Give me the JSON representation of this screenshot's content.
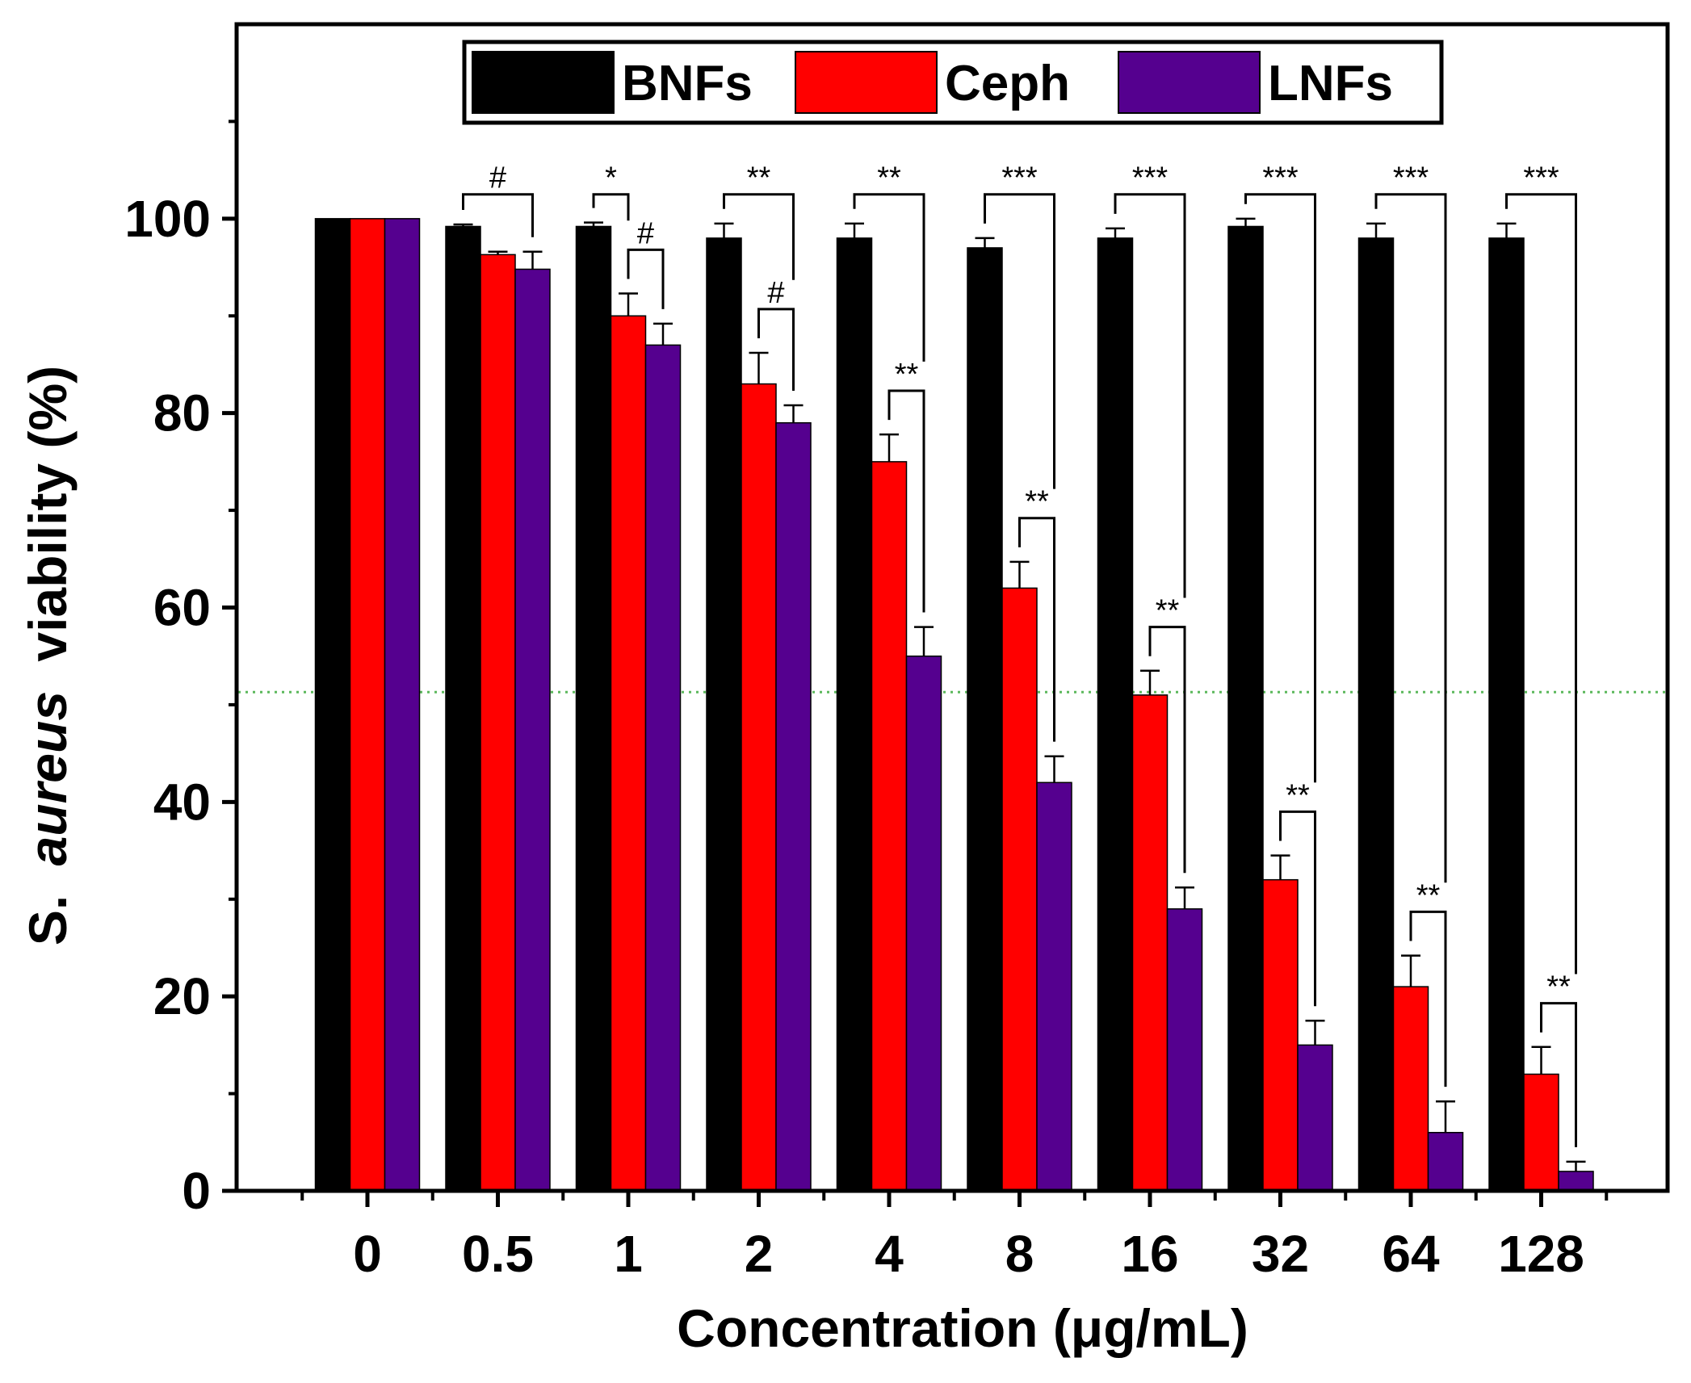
{
  "chart_data": {
    "type": "bar",
    "title": "",
    "xlabel": "Concentration (μg/mL)",
    "ylabel": {
      "prefix": "S.",
      "italic": "aureus",
      "suffix": "viability (%)"
    },
    "ylim": [
      0,
      120
    ],
    "yticks": [
      0,
      20,
      40,
      60,
      80,
      100
    ],
    "grid": false,
    "legend_position": "top-center",
    "reference_line": {
      "y": 51.3,
      "color": "#5cb85c",
      "style": "dotted"
    },
    "categories": [
      "0",
      "0.5",
      "1",
      "2",
      "4",
      "8",
      "16",
      "32",
      "64",
      "128"
    ],
    "series": [
      {
        "name": "BNFs",
        "color": "#000000",
        "values": [
          100,
          99.2,
          99.2,
          98,
          98,
          97,
          98,
          99.2,
          98,
          98
        ],
        "errors": [
          0,
          0.2,
          0.4,
          1.5,
          1.5,
          1,
          1,
          0.8,
          1.5,
          1.5
        ]
      },
      {
        "name": "Ceph",
        "color": "#ff0000",
        "values": [
          100,
          96.3,
          90,
          83,
          75,
          62,
          51,
          32,
          21,
          12
        ],
        "errors": [
          0,
          0.3,
          2.3,
          3.2,
          2.8,
          2.7,
          2.5,
          2.5,
          3.2,
          2.8
        ]
      },
      {
        "name": "LNFs",
        "color": "#55008f",
        "values": [
          100,
          94.8,
          87,
          79,
          55,
          42,
          29,
          15,
          6,
          2
        ],
        "errors": [
          0,
          1.8,
          2.2,
          1.8,
          3,
          2.7,
          2.2,
          2.5,
          3.2,
          1
        ]
      }
    ],
    "significance": [
      {
        "category": "0.5",
        "top": {
          "pair": "BNFs-LNFs",
          "label": "#"
        }
      },
      {
        "category": "1",
        "top": {
          "pair": "BNFs-Ceph",
          "label": "*"
        },
        "inner": {
          "pair": "Ceph-LNFs",
          "label": "#"
        }
      },
      {
        "category": "2",
        "top": {
          "pair": "BNFs-LNFs",
          "label": "**"
        },
        "inner": {
          "pair": "Ceph-LNFs",
          "label": "#"
        }
      },
      {
        "category": "4",
        "top": {
          "pair": "BNFs-LNFs",
          "label": "**"
        },
        "inner": {
          "pair": "Ceph-LNFs",
          "label": "**"
        }
      },
      {
        "category": "8",
        "top": {
          "pair": "BNFs-LNFs",
          "label": "***"
        },
        "inner": {
          "pair": "Ceph-LNFs",
          "label": "**"
        }
      },
      {
        "category": "16",
        "top": {
          "pair": "BNFs-LNFs",
          "label": "***"
        },
        "inner": {
          "pair": "Ceph-LNFs",
          "label": "**"
        }
      },
      {
        "category": "32",
        "top": {
          "pair": "BNFs-LNFs",
          "label": "***"
        },
        "inner": {
          "pair": "Ceph-LNFs",
          "label": "**"
        }
      },
      {
        "category": "64",
        "top": {
          "pair": "BNFs-LNFs",
          "label": "***"
        },
        "inner": {
          "pair": "Ceph-LNFs",
          "label": "**"
        }
      },
      {
        "category": "128",
        "top": {
          "pair": "BNFs-LNFs",
          "label": "***"
        },
        "inner": {
          "pair": "Ceph-LNFs",
          "label": "**"
        }
      }
    ]
  }
}
